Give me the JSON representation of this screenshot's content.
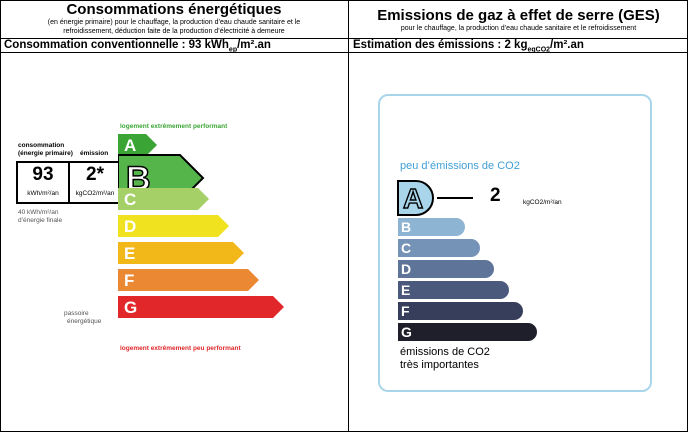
{
  "energy": {
    "title": "Consommations énergétiques",
    "subtitle_1": "(en énergie primaire) pour le chauffage, la production d’eau chaude sanitaire et le",
    "subtitle_2": "refroidissement, déduction faite de la production d’électricité à demeure",
    "value_text_prefix": "Consommation conventionnelle : 93 kWh",
    "value_text_sub": "ep",
    "value_text_suffix": "/m².an",
    "label_consommation": "consommation",
    "label_energie_primaire": "(énergie primaire)",
    "label_emission": "émission",
    "consumption_value": "93",
    "emission_value": "2*",
    "consumption_unit": "kWh/m²/an",
    "emission_unit": "kgCO2/m²/an",
    "final_energy_1": "40 kWh/m²/an",
    "final_energy_2": "d’énergie finale",
    "passive_1": "passoire",
    "passive_2": "énergétique",
    "top_label": "logement extrêmement performant",
    "bottom_label": "logement extrêmement peu performant",
    "current_class": "B",
    "classes": [
      {
        "letter": "A",
        "color": "#3aa535"
      },
      {
        "letter": "B",
        "color": "#55b54a"
      },
      {
        "letter": "C",
        "color": "#a5cf67"
      },
      {
        "letter": "D",
        "color": "#f0e21f"
      },
      {
        "letter": "E",
        "color": "#f2b81a"
      },
      {
        "letter": "F",
        "color": "#ea8834"
      },
      {
        "letter": "G",
        "color": "#e1272a"
      }
    ]
  },
  "ges": {
    "title": "Emissions de gaz à effet de serre (GES)",
    "subtitle": "pour le chauffage, la production d’eau chaude sanitaire et le refroidissement",
    "value_text_prefix": "Estimation des émissions : 2 kg",
    "value_text_sub": "eqCO2",
    "value_text_suffix": "/m².an",
    "top_label": "peu d’émissions de CO2",
    "bottom_label_1": "émissions de CO2",
    "bottom_label_2": "très importantes",
    "current_class": "A",
    "current_value": "2",
    "unit": "kgCO2/m²/an",
    "classes": [
      {
        "letter": "A",
        "color": "#a9d5ea"
      },
      {
        "letter": "B",
        "color": "#8db4d2"
      },
      {
        "letter": "C",
        "color": "#7592b7"
      },
      {
        "letter": "D",
        "color": "#5f7499"
      },
      {
        "letter": "E",
        "color": "#4b5a7c"
      },
      {
        "letter": "F",
        "color": "#363e5b"
      },
      {
        "letter": "G",
        "color": "#1f1f2b"
      }
    ]
  }
}
